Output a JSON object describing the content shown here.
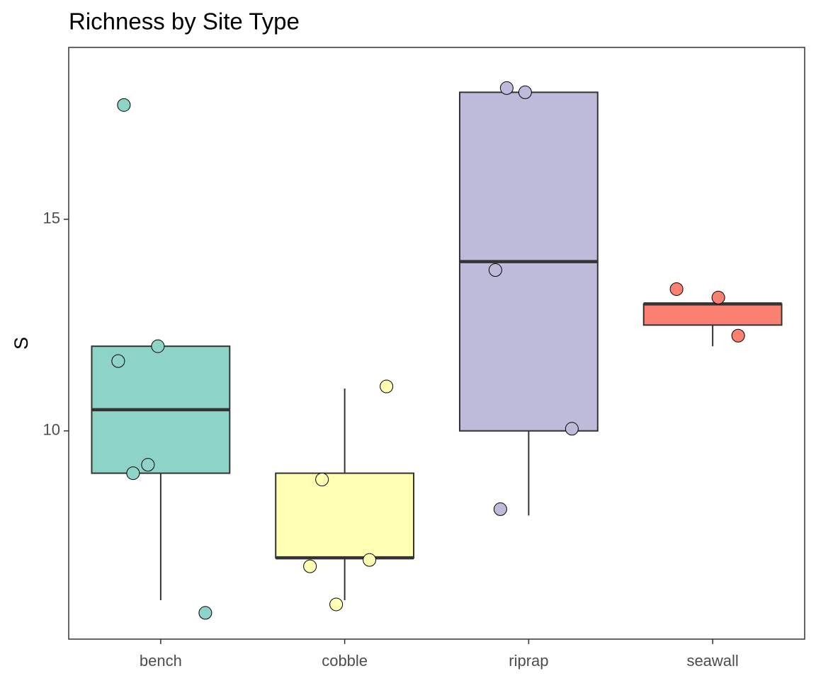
{
  "chart_data": {
    "type": "box",
    "title": "Richness by Site Type",
    "y_label": "S",
    "categories": [
      "bench",
      "cobble",
      "riprap",
      "seawall"
    ],
    "boxes": [
      {
        "color": "#8DD3C7",
        "whisker_low": 6,
        "q1": 9,
        "median": 10.5,
        "q3": 12,
        "whisker_high": 12,
        "points": [
          17.7,
          12,
          11.65,
          9.2,
          9,
          5.7
        ]
      },
      {
        "color": "#FFFFB3",
        "whisker_low": 6,
        "q1": 7,
        "median": 7,
        "q3": 9,
        "whisker_high": 11,
        "points": [
          11.05,
          8.85,
          6.95,
          6.8,
          5.9
        ]
      },
      {
        "color": "#BEBADA",
        "whisker_low": 8,
        "q1": 10,
        "median": 14,
        "q3": 18,
        "whisker_high": 18,
        "points": [
          18.1,
          18,
          13.8,
          10.05,
          8.15
        ]
      },
      {
        "color": "#FB8072",
        "whisker_low": 12,
        "q1": 12.5,
        "median": 13,
        "q3": 13,
        "whisker_high": 13,
        "points": [
          13.35,
          13.15,
          12.25
        ]
      }
    ],
    "ylim": [
      5.08,
      19.06
    ],
    "yticks": [
      10,
      15
    ]
  }
}
